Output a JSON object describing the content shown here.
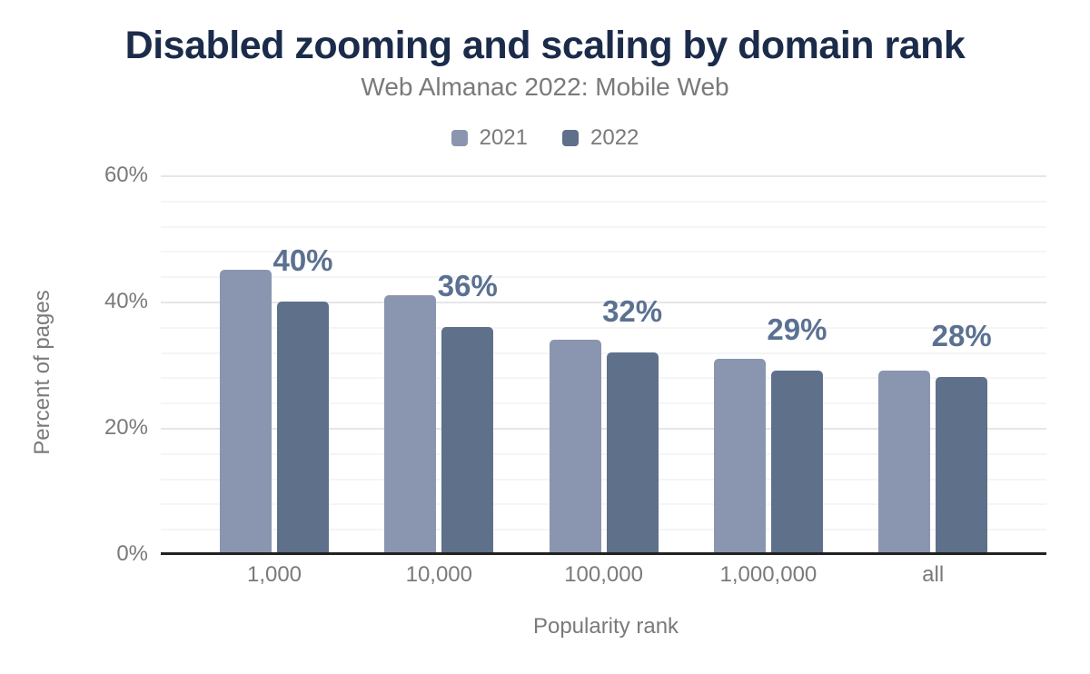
{
  "chart_data": {
    "type": "bar",
    "title": "Disabled zooming and scaling by domain rank",
    "subtitle": "Web Almanac 2022: Mobile Web",
    "xlabel": "Popularity rank",
    "ylabel": "Percent of pages",
    "categories": [
      "1,000",
      "10,000",
      "100,000",
      "1,000,000",
      "all"
    ],
    "series": [
      {
        "name": "2021",
        "color": "#8A96AF",
        "values": [
          45,
          41,
          34,
          31,
          29
        ]
      },
      {
        "name": "2022",
        "color": "#5F708B",
        "values": [
          40,
          36,
          32,
          29,
          28
        ],
        "labels": [
          "40%",
          "36%",
          "32%",
          "29%",
          "28%"
        ]
      }
    ],
    "ylim": [
      0,
      60
    ],
    "yticks": [
      0,
      20,
      40,
      60
    ],
    "ytick_labels": [
      "0%",
      "20%",
      "40%",
      "60%"
    ],
    "minor_grid_step": 4,
    "major_grid_step": 20,
    "grid": true,
    "legend_position": "top",
    "colors": {
      "title": "#1B2B4A",
      "text": "#7A7A7A",
      "data_label": "#5B7191",
      "axis_line": "#222222",
      "major_gridline": "#E6E6E6",
      "minor_gridline": "#F5F5F5",
      "background": "#FFFFFF"
    }
  }
}
